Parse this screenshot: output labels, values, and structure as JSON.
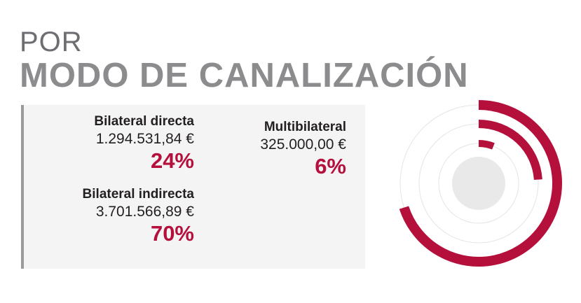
{
  "title": {
    "prefix": "POR",
    "main": "MODO DE CANALIZACIÓN"
  },
  "colors": {
    "accent": "#b5103c",
    "title_gray": "#8c8c8f",
    "panel_bg": "#f4f4f5"
  },
  "chart_data": {
    "type": "radial-bar",
    "series": [
      {
        "name": "Bilateral indirecta",
        "amount": "3.701.566,89 €",
        "percent_label": "70%",
        "value": 70
      },
      {
        "name": "Bilateral directa",
        "amount": "1.294.531,84 €",
        "percent_label": "24%",
        "value": 24
      },
      {
        "name": "Multibilateral",
        "amount": "325.000,00 €",
        "percent_label": "6%",
        "value": 6
      }
    ]
  }
}
